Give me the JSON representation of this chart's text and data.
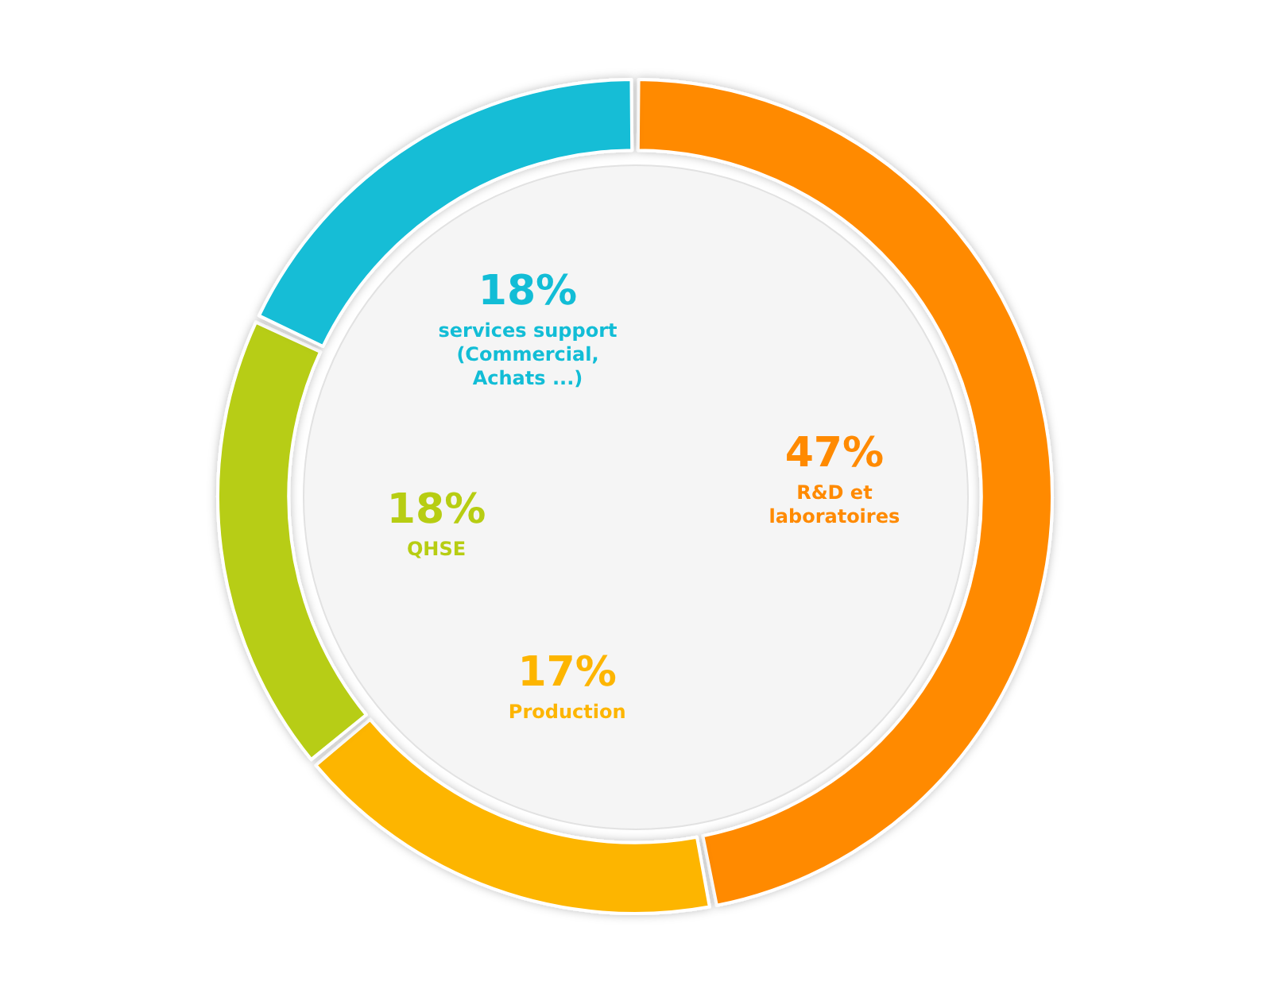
{
  "chart_data": {
    "type": "donut",
    "categories": [
      "R&D et laboratoires",
      "Production",
      "QHSE",
      "services support (Commercial, Achats ...)"
    ],
    "values": [
      47,
      17,
      18,
      18
    ],
    "value_labels": [
      "47%",
      "17%",
      "18%",
      "18%"
    ],
    "colors": [
      "#ff8a00",
      "#fdb500",
      "#b7cd12",
      "#12bdd6"
    ],
    "legend": false
  }
}
